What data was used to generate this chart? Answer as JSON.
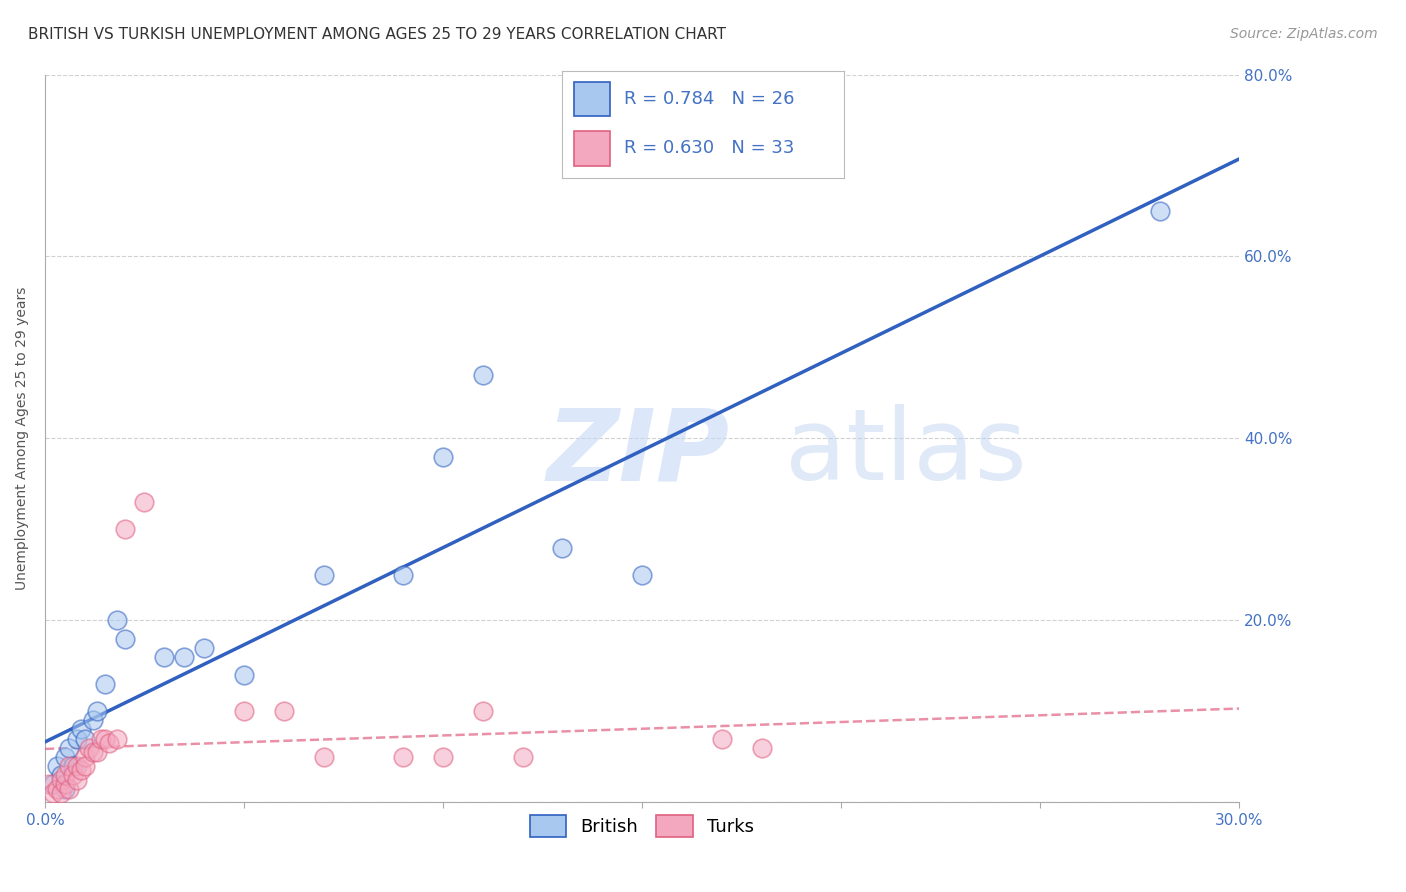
{
  "title": "BRITISH VS TURKISH UNEMPLOYMENT AMONG AGES 25 TO 29 YEARS CORRELATION CHART",
  "source": "Source: ZipAtlas.com",
  "ylabel": "Unemployment Among Ages 25 to 29 years",
  "xlim": [
    0.0,
    0.3
  ],
  "ylim": [
    0.0,
    0.8
  ],
  "xticks": [
    0.0,
    0.05,
    0.1,
    0.15,
    0.2,
    0.25,
    0.3
  ],
  "yticks": [
    0.0,
    0.2,
    0.4,
    0.6,
    0.8
  ],
  "xtick_labels": [
    "0.0%",
    "",
    "",
    "",
    "",
    "",
    "30.0%"
  ],
  "ytick_labels_right": [
    "",
    "20.0%",
    "40.0%",
    "60.0%",
    "80.0%"
  ],
  "british_color": "#A8C8F0",
  "turks_color": "#F4A8C0",
  "british_line_color": "#3060C0",
  "turks_line_color": "#E06080",
  "british_R": 0.784,
  "british_N": 26,
  "turks_R": 0.63,
  "turks_N": 33,
  "watermark_zip": "ZIP",
  "watermark_atlas": "atlas",
  "british_scatter": [
    [
      0.002,
      0.02
    ],
    [
      0.003,
      0.04
    ],
    [
      0.004,
      0.03
    ],
    [
      0.005,
      0.015
    ],
    [
      0.005,
      0.05
    ],
    [
      0.006,
      0.06
    ],
    [
      0.007,
      0.04
    ],
    [
      0.008,
      0.07
    ],
    [
      0.009,
      0.08
    ],
    [
      0.01,
      0.07
    ],
    [
      0.012,
      0.09
    ],
    [
      0.013,
      0.1
    ],
    [
      0.015,
      0.13
    ],
    [
      0.018,
      0.2
    ],
    [
      0.02,
      0.18
    ],
    [
      0.03,
      0.16
    ],
    [
      0.035,
      0.16
    ],
    [
      0.04,
      0.17
    ],
    [
      0.05,
      0.14
    ],
    [
      0.07,
      0.25
    ],
    [
      0.09,
      0.25
    ],
    [
      0.1,
      0.38
    ],
    [
      0.11,
      0.47
    ],
    [
      0.13,
      0.28
    ],
    [
      0.15,
      0.25
    ],
    [
      0.28,
      0.65
    ]
  ],
  "turks_scatter": [
    [
      0.001,
      0.02
    ],
    [
      0.002,
      0.01
    ],
    [
      0.003,
      0.015
    ],
    [
      0.004,
      0.025
    ],
    [
      0.004,
      0.01
    ],
    [
      0.005,
      0.02
    ],
    [
      0.005,
      0.03
    ],
    [
      0.006,
      0.04
    ],
    [
      0.006,
      0.015
    ],
    [
      0.007,
      0.03
    ],
    [
      0.008,
      0.04
    ],
    [
      0.008,
      0.025
    ],
    [
      0.009,
      0.035
    ],
    [
      0.01,
      0.05
    ],
    [
      0.01,
      0.04
    ],
    [
      0.011,
      0.06
    ],
    [
      0.012,
      0.055
    ],
    [
      0.013,
      0.055
    ],
    [
      0.014,
      0.07
    ],
    [
      0.015,
      0.07
    ],
    [
      0.016,
      0.065
    ],
    [
      0.018,
      0.07
    ],
    [
      0.02,
      0.3
    ],
    [
      0.025,
      0.33
    ],
    [
      0.05,
      0.1
    ],
    [
      0.06,
      0.1
    ],
    [
      0.07,
      0.05
    ],
    [
      0.09,
      0.05
    ],
    [
      0.1,
      0.05
    ],
    [
      0.11,
      0.1
    ],
    [
      0.12,
      0.05
    ],
    [
      0.17,
      0.07
    ],
    [
      0.18,
      0.06
    ]
  ],
  "background_color": "#FFFFFF",
  "grid_color": "#CCCCCC",
  "title_fontsize": 11,
  "axis_label_fontsize": 10,
  "tick_fontsize": 11,
  "legend_fontsize": 13,
  "source_fontsize": 10,
  "scatter_size": 180,
  "scatter_alpha": 0.55,
  "scatter_linewidth": 1.2
}
